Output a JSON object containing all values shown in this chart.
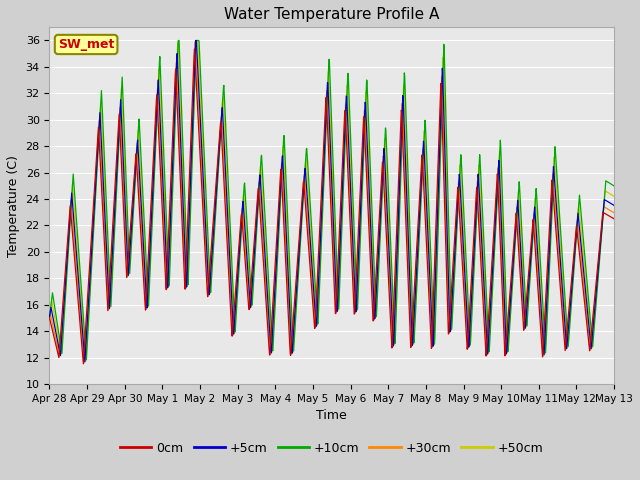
{
  "title": "Water Temperature Profile A",
  "xlabel": "Time",
  "ylabel": "Temperature (C)",
  "ylim": [
    10,
    37
  ],
  "yticks": [
    10,
    12,
    14,
    16,
    18,
    20,
    22,
    24,
    26,
    28,
    30,
    32,
    34,
    36
  ],
  "fig_bg": "#d0d0d0",
  "plot_bg": "#e8e8e8",
  "series_colors": [
    "#cc0000",
    "#0000cc",
    "#00aa00",
    "#ff8800",
    "#cccc00"
  ],
  "series_labels": [
    "0cm",
    "+5cm",
    "+10cm",
    "+30cm",
    "+50cm"
  ],
  "legend_label": "SW_met",
  "legend_label_color": "#cc0000",
  "legend_box_facecolor": "#ffff99",
  "legend_box_edgecolor": "#888800",
  "x_tick_labels": [
    "Apr 28",
    "Apr 29",
    "Apr 30",
    "May 1",
    "May 2",
    "May 3",
    "May 4",
    "May 5",
    "May 6",
    "May 7",
    "May 8",
    "May 9",
    "May 10",
    "May 11",
    "May 12",
    "May 13"
  ],
  "grid_color": "#ffffff",
  "num_days": 15
}
